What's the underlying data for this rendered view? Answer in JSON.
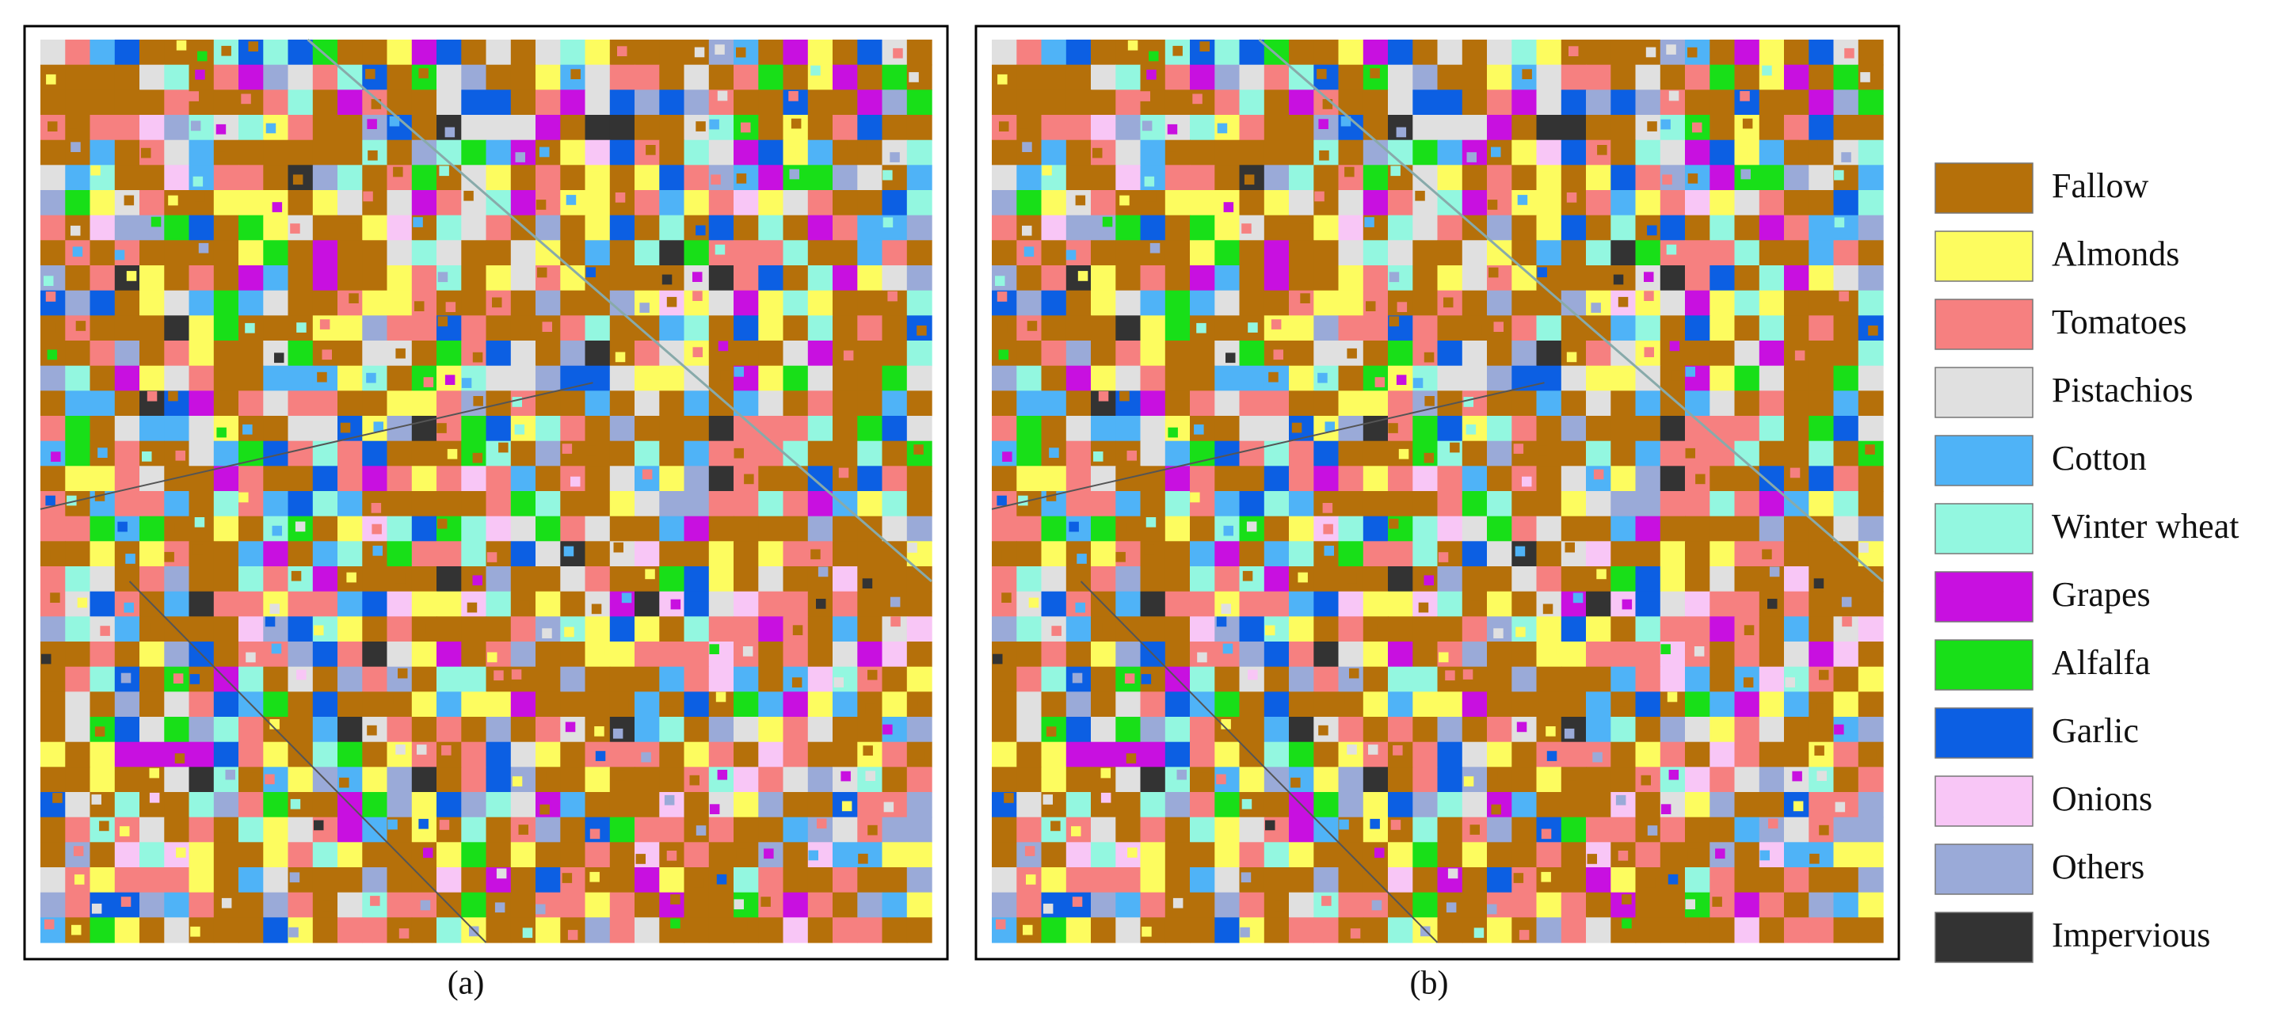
{
  "panels": [
    {
      "label": "(a)"
    },
    {
      "label": "(b)"
    }
  ],
  "legend": {
    "items": [
      {
        "name": "Fallow",
        "color": "#b5700a"
      },
      {
        "name": "Almonds",
        "color": "#fdfc5f"
      },
      {
        "name": "Tomatoes",
        "color": "#f68080"
      },
      {
        "name": "Pistachios",
        "color": "#e0e0e0"
      },
      {
        "name": "Cotton",
        "color": "#4fb3f7"
      },
      {
        "name": "Winter wheat",
        "color": "#93f7e0"
      },
      {
        "name": "Grapes",
        "color": "#c810e0"
      },
      {
        "name": "Alfalfa",
        "color": "#18df18"
      },
      {
        "name": "Garlic",
        "color": "#0c5fe3"
      },
      {
        "name": "Onions",
        "color": "#f8c6f6"
      },
      {
        "name": "Others",
        "color": "#9aaad8"
      },
      {
        "name": "Impervious",
        "color": "#333333"
      }
    ]
  }
}
